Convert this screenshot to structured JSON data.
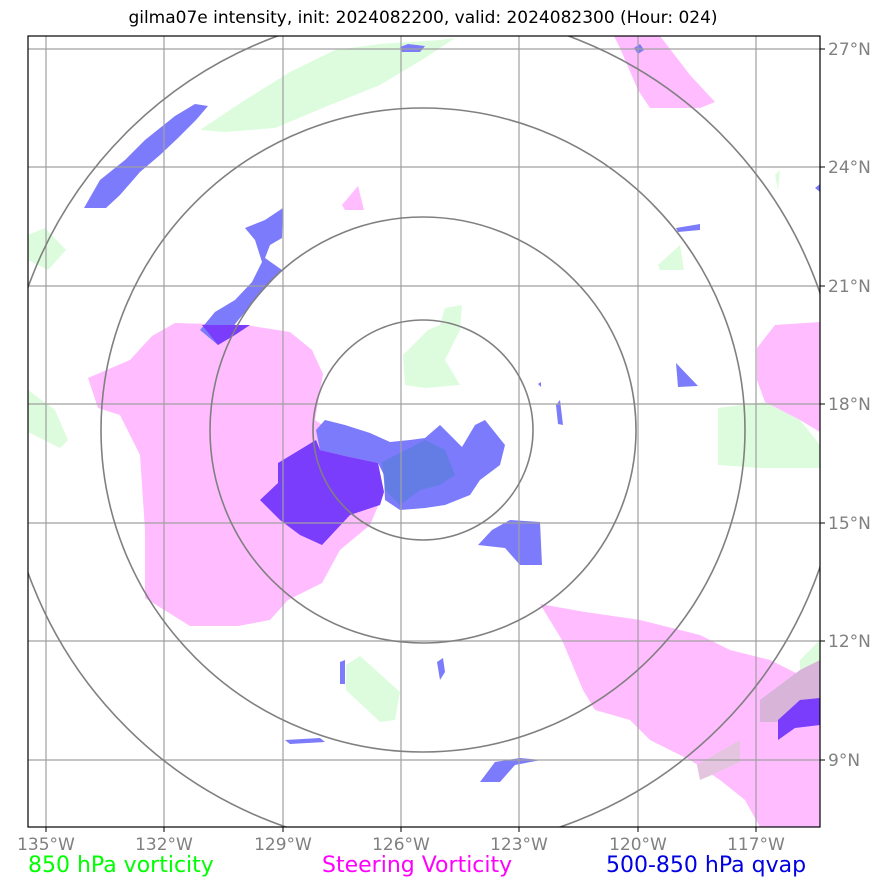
{
  "title": "gilma07e intensity, init: 2024082200, valid: 2024082300 (Hour: 024)",
  "lon_labels": [
    "135°W",
    "132°W",
    "129°W",
    "126°W",
    "123°W",
    "120°W",
    "117°W"
  ],
  "lat_labels": [
    "27°N",
    "24°N",
    "21°N",
    "18°N",
    "15°N",
    "12°N",
    "9°N"
  ],
  "legend": {
    "vorticity_850": {
      "label": "850 hPa vorticity",
      "color": "#00ff00"
    },
    "steering": {
      "label": "Steering Vorticity",
      "color": "#ff00ff"
    },
    "qvap": {
      "label": "500-850 hPa qvap",
      "color": "#0000e0"
    }
  },
  "colors": {
    "green_fill": "#ddfcdd",
    "pink_fill": "#ffbcff",
    "blue_fill": "#7b7bfb",
    "purple_overlap": "#7a3dfb",
    "gridline": "#a0a0a0",
    "range_ring": "#808080"
  },
  "storm_center": {
    "lon": -125.6,
    "lat": 17.4
  },
  "range_rings": {
    "count": 4,
    "shape": "concentric circles around storm center"
  }
}
